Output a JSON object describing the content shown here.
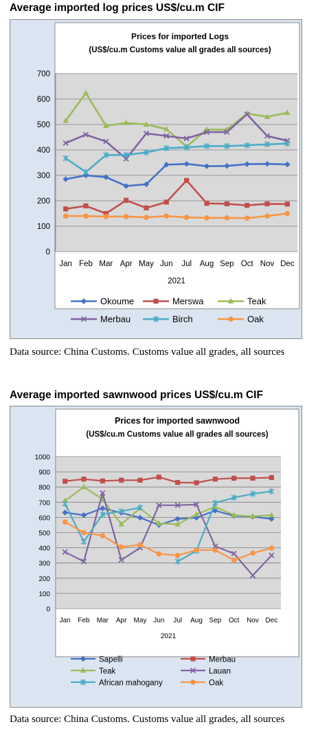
{
  "sections": [
    {
      "heading": "Average imported log prices US$/cu.m CIF",
      "source": "Data source: China Customs. Customs value all grades, all sources"
    },
    {
      "heading": "Average imported sawnwood prices US$/cu.m CIF",
      "source": "Data source: China Customs. Customs value all grades, all sources"
    }
  ],
  "chart_data": [
    {
      "type": "line",
      "title": "Prices for imported Logs",
      "subtitle": "(US$/cu.m Customs value all grades all sources)",
      "xlabel": "2021",
      "ylabel": "",
      "categories": [
        "Jan",
        "Feb",
        "Mar",
        "Apr",
        "May",
        "Jun",
        "Jul",
        "Aug",
        "Sep",
        "Oct",
        "Nov",
        "Dec"
      ],
      "ylim": [
        0,
        700
      ],
      "yticks": [
        0,
        100,
        200,
        300,
        400,
        500,
        600,
        700
      ],
      "grid": true,
      "legend": "bottom",
      "series": [
        {
          "name": "Okoume",
          "color": "#4472c4",
          "marker": "diamond",
          "values": [
            285,
            300,
            293,
            258,
            265,
            342,
            345,
            336,
            337,
            344,
            345,
            343
          ]
        },
        {
          "name": "Merswa",
          "color": "#c0504d",
          "marker": "square",
          "values": [
            168,
            180,
            150,
            202,
            172,
            195,
            280,
            190,
            188,
            182,
            188,
            187
          ]
        },
        {
          "name": "Teak",
          "color": "#9bbb59",
          "marker": "triangle",
          "values": [
            515,
            623,
            495,
            506,
            500,
            482,
            413,
            480,
            480,
            543,
            530,
            546
          ]
        },
        {
          "name": "Merbau",
          "color": "#8064a2",
          "marker": "x",
          "values": [
            427,
            460,
            433,
            365,
            465,
            455,
            445,
            470,
            470,
            540,
            455,
            436
          ]
        },
        {
          "name": "Birch",
          "color": "#4bacc6",
          "marker": "star",
          "values": [
            367,
            313,
            380,
            380,
            390,
            407,
            410,
            415,
            415,
            418,
            422,
            425
          ]
        },
        {
          "name": "Oak",
          "color": "#f79646",
          "marker": "circle",
          "values": [
            140,
            140,
            138,
            138,
            135,
            140,
            135,
            133,
            133,
            132,
            140,
            150
          ]
        }
      ]
    },
    {
      "type": "line",
      "title": "Prices for imported sawnwood",
      "subtitle": "(US$/cu.m Customs value all grades all sources)",
      "xlabel": "2021",
      "ylabel": "",
      "categories": [
        "Jan",
        "Feb",
        "Mar",
        "Apr",
        "May",
        "Jun",
        "Jul",
        "Aug",
        "Sep",
        "Oct",
        "Nov",
        "Dec"
      ],
      "ylim": [
        0,
        1000
      ],
      "yticks": [
        0,
        100,
        200,
        300,
        400,
        500,
        600,
        700,
        800,
        900,
        1000
      ],
      "grid": true,
      "legend": "bottom",
      "series": [
        {
          "name": "Sapelli",
          "color": "#4472c4",
          "marker": "diamond",
          "values": [
            632,
            615,
            660,
            630,
            598,
            550,
            590,
            598,
            645,
            610,
            605,
            590
          ]
        },
        {
          "name": "Merbau",
          "color": "#c0504d",
          "marker": "square",
          "values": [
            838,
            852,
            840,
            845,
            845,
            865,
            830,
            828,
            852,
            858,
            858,
            862
          ]
        },
        {
          "name": "Teak",
          "color": "#9bbb59",
          "marker": "triangle",
          "values": [
            710,
            800,
            720,
            555,
            660,
            560,
            555,
            620,
            670,
            615,
            607,
            615
          ]
        },
        {
          "name": "Lauan",
          "color": "#8064a2",
          "marker": "x",
          "values": [
            372,
            310,
            760,
            320,
            400,
            680,
            680,
            685,
            410,
            362,
            218,
            350
          ]
        },
        {
          "name": "African mahogany",
          "color": "#4bacc6",
          "marker": "star",
          "values": [
            690,
            440,
            620,
            640,
            665,
            null,
            310,
            380,
            695,
            730,
            755,
            772
          ]
        },
        {
          "name": "Oak",
          "color": "#f79646",
          "marker": "circle",
          "values": [
            570,
            500,
            480,
            405,
            420,
            360,
            350,
            385,
            385,
            318,
            365,
            398
          ]
        }
      ]
    }
  ]
}
